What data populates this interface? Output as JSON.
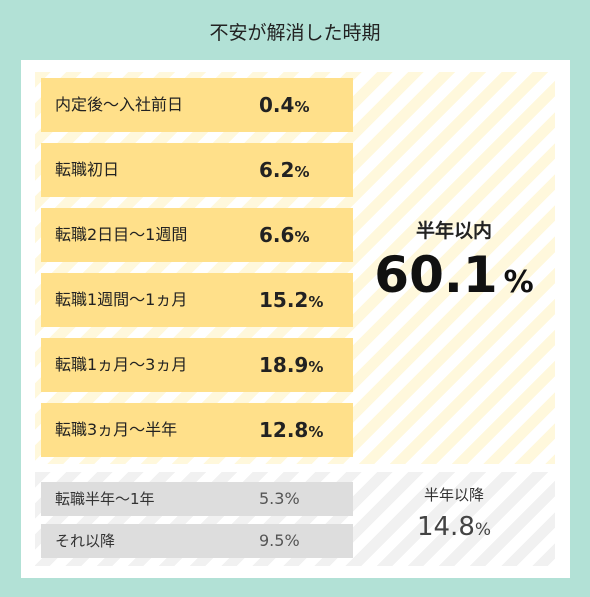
{
  "chart_data": {
    "type": "table",
    "title": "不安が解消した時期",
    "rows": [
      {
        "label": "内定後～入社前日",
        "value": "0.4",
        "unit": "%"
      },
      {
        "label": "転職初日",
        "value": "6.2",
        "unit": "%"
      },
      {
        "label": "転職2日目～1週間",
        "value": "6.6",
        "unit": "%"
      },
      {
        "label": "転職1週間～1ヵ月",
        "value": "15.2",
        "unit": "%"
      },
      {
        "label": "転職1ヵ月～3ヵ月",
        "value": "18.9",
        "unit": "%"
      },
      {
        "label": "転職3ヵ月～半年",
        "value": "12.8",
        "unit": "%"
      }
    ],
    "summary_within": {
      "label": "半年以内",
      "value": "60.1",
      "unit": "%"
    },
    "rows_after": [
      {
        "label": "転職半年～1年",
        "value": "5.3",
        "unit": "%"
      },
      {
        "label": "それ以降",
        "value": "9.5",
        "unit": "%"
      }
    ],
    "summary_after": {
      "label": "半年以降",
      "value": "14.8",
      "unit": "%"
    }
  },
  "colors": {
    "background": "#b2e1d6",
    "row_highlight": "#ffe08a",
    "row_muted": "#dddddd"
  }
}
